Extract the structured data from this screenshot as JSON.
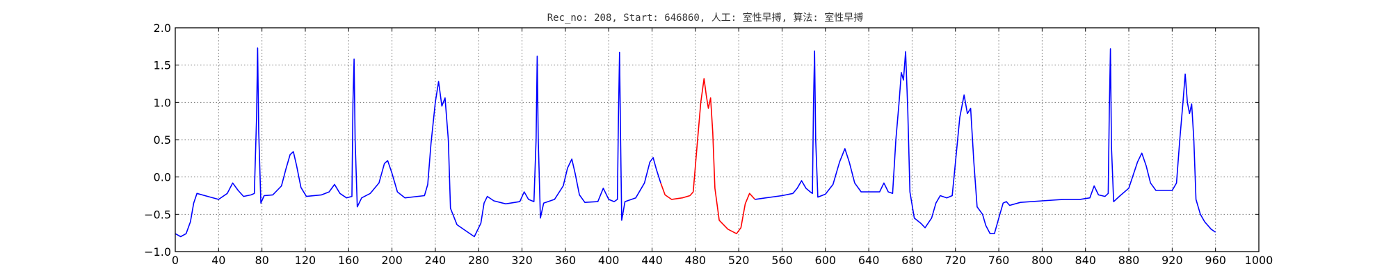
{
  "chart_data": {
    "type": "line",
    "title": "Rec_no: 208, Start: 646860, 人工: 室性早搏, 算法: 室性早搏",
    "xlabel": "",
    "ylabel": "",
    "xlim": [
      0,
      1000
    ],
    "ylim": [
      -1.0,
      2.0
    ],
    "y_ticks": [
      2.0,
      1.5,
      1.0,
      0.5,
      0.0,
      -0.5,
      -1.0
    ],
    "y_tick_labels": [
      "2.0",
      "1.5",
      "1.0",
      "0.5",
      "0.0",
      "−0.5",
      "−1.0"
    ],
    "x_ticks": [
      0,
      40,
      80,
      120,
      160,
      200,
      240,
      280,
      320,
      360,
      400,
      440,
      480,
      520,
      560,
      600,
      640,
      680,
      720,
      760,
      800,
      840,
      880,
      920,
      960,
      1000
    ],
    "x_tick_labels": [
      "0",
      "40",
      "80",
      "120",
      "160",
      "200",
      "240",
      "280",
      "320",
      "360",
      "400",
      "440",
      "480",
      "520",
      "560",
      "600",
      "640",
      "680",
      "720",
      "760",
      "800",
      "840",
      "880",
      "920",
      "960",
      "1000"
    ],
    "grid": true,
    "colors": {
      "normal": "#0000ff",
      "highlight": "#ff0000",
      "frame": "#000000"
    },
    "series": [
      {
        "color": "#0000ff",
        "points": [
          [
            0,
            -0.76
          ],
          [
            5,
            -0.8
          ],
          [
            10,
            -0.76
          ],
          [
            14,
            -0.6
          ],
          [
            17,
            -0.35
          ],
          [
            20,
            -0.22
          ],
          [
            30,
            -0.26
          ],
          [
            40,
            -0.3
          ],
          [
            48,
            -0.22
          ],
          [
            53,
            -0.08
          ],
          [
            58,
            -0.18
          ],
          [
            63,
            -0.26
          ],
          [
            70,
            -0.24
          ],
          [
            73,
            -0.22
          ],
          [
            75,
            0.8
          ],
          [
            76,
            1.73
          ],
          [
            77,
            0.6
          ],
          [
            79,
            -0.35
          ],
          [
            82,
            -0.25
          ],
          [
            90,
            -0.24
          ],
          [
            98,
            -0.12
          ],
          [
            102,
            0.1
          ],
          [
            106,
            0.3
          ],
          [
            109,
            0.34
          ],
          [
            112,
            0.15
          ],
          [
            116,
            -0.14
          ],
          [
            121,
            -0.26
          ],
          [
            135,
            -0.24
          ],
          [
            142,
            -0.2
          ],
          [
            147,
            -0.1
          ],
          [
            152,
            -0.22
          ],
          [
            158,
            -0.28
          ],
          [
            163,
            -0.26
          ],
          [
            164,
            1.0
          ],
          [
            165,
            1.58
          ],
          [
            166,
            0.5
          ],
          [
            168,
            -0.4
          ],
          [
            172,
            -0.28
          ],
          [
            180,
            -0.22
          ],
          [
            188,
            -0.08
          ],
          [
            193,
            0.18
          ],
          [
            196,
            0.22
          ],
          [
            200,
            0.05
          ],
          [
            205,
            -0.2
          ],
          [
            212,
            -0.28
          ],
          [
            230,
            -0.25
          ],
          [
            233,
            -0.1
          ],
          [
            236,
            0.45
          ],
          [
            240,
            1.0
          ],
          [
            243,
            1.28
          ],
          [
            246,
            0.95
          ],
          [
            249,
            1.06
          ],
          [
            252,
            0.5
          ],
          [
            254,
            -0.42
          ],
          [
            260,
            -0.64
          ],
          [
            270,
            -0.74
          ],
          [
            276,
            -0.8
          ],
          [
            282,
            -0.62
          ],
          [
            285,
            -0.35
          ],
          [
            288,
            -0.26
          ],
          [
            294,
            -0.32
          ],
          [
            305,
            -0.36
          ],
          [
            318,
            -0.33
          ],
          [
            322,
            -0.2
          ],
          [
            326,
            -0.3
          ],
          [
            331,
            -0.33
          ],
          [
            333,
            0.5
          ],
          [
            334,
            1.62
          ],
          [
            335,
            0.5
          ],
          [
            337,
            -0.55
          ],
          [
            340,
            -0.35
          ],
          [
            350,
            -0.3
          ],
          [
            358,
            -0.12
          ],
          [
            362,
            0.12
          ],
          [
            366,
            0.24
          ],
          [
            369,
            0.05
          ],
          [
            373,
            -0.24
          ],
          [
            378,
            -0.34
          ],
          [
            390,
            -0.33
          ],
          [
            395,
            -0.15
          ],
          [
            400,
            -0.3
          ],
          [
            405,
            -0.33
          ],
          [
            408,
            -0.3
          ],
          [
            409,
            0.8
          ],
          [
            410,
            1.67
          ],
          [
            411,
            0.5
          ],
          [
            412,
            -0.58
          ],
          [
            415,
            -0.33
          ],
          [
            425,
            -0.28
          ],
          [
            433,
            -0.08
          ],
          [
            438,
            0.2
          ],
          [
            441,
            0.26
          ],
          [
            444,
            0.1
          ],
          [
            448,
            -0.08
          ]
        ]
      },
      {
        "color": "#ff0000",
        "points": [
          [
            448,
            -0.08
          ],
          [
            452,
            -0.24
          ],
          [
            458,
            -0.3
          ],
          [
            468,
            -0.28
          ],
          [
            475,
            -0.25
          ],
          [
            478,
            -0.2
          ],
          [
            482,
            0.5
          ],
          [
            485,
            1.0
          ],
          [
            488,
            1.32
          ],
          [
            490,
            1.1
          ],
          [
            492,
            0.92
          ],
          [
            494,
            1.06
          ],
          [
            496,
            0.6
          ],
          [
            498,
            -0.15
          ],
          [
            502,
            -0.58
          ],
          [
            510,
            -0.7
          ],
          [
            518,
            -0.76
          ],
          [
            522,
            -0.68
          ],
          [
            526,
            -0.36
          ],
          [
            530,
            -0.22
          ],
          [
            535,
            -0.3
          ]
        ]
      },
      {
        "color": "#0000ff",
        "points": [
          [
            535,
            -0.3
          ],
          [
            545,
            -0.28
          ],
          [
            560,
            -0.25
          ],
          [
            570,
            -0.22
          ],
          [
            574,
            -0.15
          ],
          [
            578,
            -0.05
          ],
          [
            582,
            -0.15
          ],
          [
            586,
            -0.2
          ],
          [
            588,
            -0.22
          ],
          [
            589,
            1.0
          ],
          [
            590,
            1.69
          ],
          [
            591,
            0.5
          ],
          [
            593,
            -0.27
          ],
          [
            600,
            -0.23
          ],
          [
            607,
            -0.1
          ],
          [
            613,
            0.2
          ],
          [
            618,
            0.38
          ],
          [
            622,
            0.2
          ],
          [
            627,
            -0.08
          ],
          [
            633,
            -0.2
          ],
          [
            650,
            -0.2
          ],
          [
            654,
            -0.08
          ],
          [
            658,
            -0.2
          ],
          [
            662,
            -0.22
          ],
          [
            665,
            0.5
          ],
          [
            668,
            1.0
          ],
          [
            670,
            1.4
          ],
          [
            672,
            1.3
          ],
          [
            674,
            1.68
          ],
          [
            676,
            0.9
          ],
          [
            678,
            -0.2
          ],
          [
            682,
            -0.55
          ],
          [
            688,
            -0.62
          ],
          [
            692,
            -0.68
          ],
          [
            698,
            -0.55
          ],
          [
            702,
            -0.35
          ],
          [
            706,
            -0.25
          ],
          [
            712,
            -0.28
          ],
          [
            717,
            -0.25
          ],
          [
            720,
            0.2
          ],
          [
            724,
            0.8
          ],
          [
            728,
            1.1
          ],
          [
            731,
            0.85
          ],
          [
            734,
            0.92
          ],
          [
            737,
            0.2
          ],
          [
            740,
            -0.4
          ],
          [
            745,
            -0.5
          ],
          [
            748,
            -0.65
          ],
          [
            752,
            -0.76
          ],
          [
            756,
            -0.76
          ],
          [
            760,
            -0.55
          ],
          [
            764,
            -0.35
          ],
          [
            767,
            -0.33
          ],
          [
            770,
            -0.38
          ],
          [
            780,
            -0.34
          ],
          [
            800,
            -0.32
          ],
          [
            820,
            -0.3
          ],
          [
            835,
            -0.3
          ],
          [
            844,
            -0.28
          ],
          [
            848,
            -0.12
          ],
          [
            852,
            -0.24
          ],
          [
            858,
            -0.26
          ],
          [
            861,
            -0.22
          ],
          [
            862,
            0.9
          ],
          [
            863,
            1.72
          ],
          [
            864,
            0.4
          ],
          [
            866,
            -0.33
          ],
          [
            872,
            -0.25
          ],
          [
            880,
            -0.15
          ],
          [
            888,
            0.2
          ],
          [
            892,
            0.32
          ],
          [
            896,
            0.15
          ],
          [
            900,
            -0.08
          ],
          [
            905,
            -0.18
          ],
          [
            920,
            -0.18
          ],
          [
            924,
            -0.08
          ],
          [
            927,
            0.5
          ],
          [
            930,
            1.0
          ],
          [
            932,
            1.38
          ],
          [
            934,
            1.0
          ],
          [
            936,
            0.85
          ],
          [
            938,
            0.98
          ],
          [
            940,
            0.5
          ],
          [
            942,
            -0.3
          ],
          [
            946,
            -0.5
          ],
          [
            950,
            -0.6
          ],
          [
            956,
            -0.7
          ],
          [
            960,
            -0.74
          ]
        ]
      }
    ]
  }
}
